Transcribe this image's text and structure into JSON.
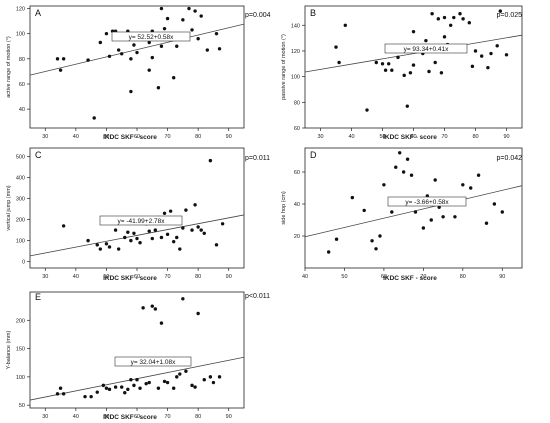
{
  "chart_data": [
    {
      "panel": "A",
      "type": "scatter",
      "xlabel": "IKDC SKF - score",
      "ylabel": "active range of motion (°)",
      "xlim": [
        25,
        95
      ],
      "ylim": [
        25,
        122
      ],
      "xticks": [
        "30",
        "40",
        "50",
        "60",
        "70",
        "80",
        "90"
      ],
      "yticks": [
        "40",
        "60",
        "80",
        "100",
        "120"
      ],
      "pvalue": "p=0.004",
      "equation": "y= 52.52+0.58x",
      "fit": {
        "intercept": 52.52,
        "slope": 0.58
      },
      "points": [
        [
          34,
          80
        ],
        [
          35,
          71
        ],
        [
          36,
          80
        ],
        [
          44,
          79
        ],
        [
          46,
          33
        ],
        [
          48,
          93
        ],
        [
          50,
          100
        ],
        [
          51,
          82
        ],
        [
          52,
          102
        ],
        [
          53,
          102
        ],
        [
          54,
          87
        ],
        [
          55,
          84
        ],
        [
          57,
          102
        ],
        [
          58,
          54
        ],
        [
          58,
          80
        ],
        [
          59,
          91
        ],
        [
          60,
          85
        ],
        [
          62,
          100
        ],
        [
          64,
          93
        ],
        [
          64,
          71
        ],
        [
          65,
          81
        ],
        [
          65,
          102
        ],
        [
          66,
          98
        ],
        [
          67,
          57
        ],
        [
          68,
          120
        ],
        [
          68,
          90
        ],
        [
          69,
          104
        ],
        [
          70,
          112
        ],
        [
          71,
          100
        ],
        [
          72,
          65
        ],
        [
          73,
          90
        ],
        [
          75,
          111
        ],
        [
          76,
          96
        ],
        [
          77,
          120
        ],
        [
          78,
          103
        ],
        [
          79,
          118
        ],
        [
          80,
          96
        ],
        [
          81,
          114
        ],
        [
          83,
          87
        ],
        [
          86,
          100
        ],
        [
          87,
          88
        ]
      ]
    },
    {
      "panel": "B",
      "type": "scatter",
      "xlabel": "IKDC SKF - score",
      "ylabel": "passive range of motion (°)",
      "xlim": [
        25,
        95
      ],
      "ylim": [
        60,
        155
      ],
      "xticks": [
        "30",
        "40",
        "50",
        "60",
        "70",
        "80",
        "90"
      ],
      "yticks": [
        "60",
        "80",
        "100",
        "120",
        "140"
      ],
      "pvalue": "p=0.025",
      "equation": "y= 93.34+0.41x",
      "fit": {
        "intercept": 93.34,
        "slope": 0.41
      },
      "points": [
        [
          35,
          123
        ],
        [
          36,
          111
        ],
        [
          38,
          140
        ],
        [
          45,
          74
        ],
        [
          48,
          111
        ],
        [
          50,
          110
        ],
        [
          51,
          105
        ],
        [
          52,
          110
        ],
        [
          53,
          105
        ],
        [
          55,
          115
        ],
        [
          57,
          101
        ],
        [
          58,
          77
        ],
        [
          59,
          103
        ],
        [
          60,
          135
        ],
        [
          60,
          109
        ],
        [
          62,
          121
        ],
        [
          63,
          118
        ],
        [
          64,
          128
        ],
        [
          65,
          104
        ],
        [
          66,
          149
        ],
        [
          67,
          111
        ],
        [
          68,
          145
        ],
        [
          69,
          103
        ],
        [
          70,
          146
        ],
        [
          70,
          131
        ],
        [
          71,
          125
        ],
        [
          72,
          140
        ],
        [
          73,
          146
        ],
        [
          74,
          124
        ],
        [
          75,
          149
        ],
        [
          76,
          145
        ],
        [
          78,
          142
        ],
        [
          79,
          108
        ],
        [
          80,
          120
        ],
        [
          82,
          116
        ],
        [
          84,
          107
        ],
        [
          85,
          118
        ],
        [
          87,
          124
        ],
        [
          88,
          151
        ],
        [
          90,
          117
        ]
      ]
    },
    {
      "panel": "C",
      "type": "scatter",
      "xlabel": "IKDC SKF - score",
      "ylabel": "vertical jump (mm)",
      "xlim": [
        25,
        95
      ],
      "ylim": [
        -30,
        540
      ],
      "xticks": [
        "30",
        "40",
        "50",
        "60",
        "70",
        "80",
        "90"
      ],
      "yticks": [
        "0",
        "100",
        "200",
        "300",
        "400",
        "500"
      ],
      "pvalue": "p=0.011",
      "equation": "y= -41.99+2.78x",
      "fit": {
        "intercept": -41.99,
        "slope": 2.78
      },
      "points": [
        [
          36,
          170
        ],
        [
          44,
          100
        ],
        [
          47,
          80
        ],
        [
          48,
          60
        ],
        [
          50,
          85
        ],
        [
          51,
          70
        ],
        [
          53,
          150
        ],
        [
          54,
          60
        ],
        [
          56,
          115
        ],
        [
          57,
          140
        ],
        [
          58,
          100
        ],
        [
          59,
          135
        ],
        [
          60,
          110
        ],
        [
          61,
          90
        ],
        [
          63,
          180
        ],
        [
          64,
          145
        ],
        [
          65,
          110
        ],
        [
          66,
          150
        ],
        [
          67,
          210
        ],
        [
          68,
          115
        ],
        [
          69,
          230
        ],
        [
          70,
          130
        ],
        [
          71,
          240
        ],
        [
          72,
          95
        ],
        [
          73,
          115
        ],
        [
          74,
          60
        ],
        [
          75,
          160
        ],
        [
          76,
          245
        ],
        [
          78,
          150
        ],
        [
          79,
          270
        ],
        [
          80,
          165
        ],
        [
          81,
          150
        ],
        [
          82,
          135
        ],
        [
          84,
          480
        ],
        [
          86,
          80
        ],
        [
          88,
          180
        ]
      ]
    },
    {
      "panel": "D",
      "type": "scatter",
      "xlabel": "IKDC SKF - score",
      "ylabel": "side hop (cm)",
      "xlim": [
        40,
        95
      ],
      "ylim": [
        0,
        75
      ],
      "xticks": [
        "40",
        "50",
        "60",
        "70",
        "80",
        "90"
      ],
      "yticks": [
        "20",
        "40",
        "60"
      ],
      "pvalue": "p=0.042",
      "equation": "y= -3.66+0.58x",
      "fit": {
        "intercept": -3.66,
        "slope": 0.58
      },
      "points": [
        [
          46,
          10
        ],
        [
          48,
          18
        ],
        [
          52,
          44
        ],
        [
          55,
          36
        ],
        [
          57,
          17
        ],
        [
          58,
          12
        ],
        [
          59,
          20
        ],
        [
          60,
          52
        ],
        [
          62,
          35
        ],
        [
          63,
          63
        ],
        [
          64,
          72
        ],
        [
          65,
          60
        ],
        [
          66,
          68
        ],
        [
          67,
          58
        ],
        [
          68,
          35
        ],
        [
          69,
          42
        ],
        [
          70,
          25
        ],
        [
          71,
          45
        ],
        [
          72,
          30
        ],
        [
          73,
          55
        ],
        [
          74,
          38
        ],
        [
          75,
          32
        ],
        [
          78,
          32
        ],
        [
          80,
          52
        ],
        [
          82,
          50
        ],
        [
          84,
          58
        ],
        [
          86,
          28
        ],
        [
          88,
          40
        ],
        [
          90,
          35
        ]
      ]
    },
    {
      "panel": "E",
      "type": "scatter",
      "xlabel": "IKDC SKF - score",
      "ylabel": "Y-balance (mm)",
      "xlim": [
        25,
        95
      ],
      "ylim": [
        45,
        250
      ],
      "xticks": [
        "30",
        "40",
        "50",
        "60",
        "70",
        "80",
        "90"
      ],
      "yticks": [
        "50",
        "100",
        "150",
        "200"
      ],
      "pvalue": "p<0.011",
      "equation": "y= 32.04+1.08x",
      "fit": {
        "intercept": 32.04,
        "slope": 1.08
      },
      "points": [
        [
          34,
          70
        ],
        [
          35,
          80
        ],
        [
          36,
          70
        ],
        [
          43,
          65
        ],
        [
          45,
          65
        ],
        [
          47,
          73
        ],
        [
          49,
          85
        ],
        [
          50,
          80
        ],
        [
          51,
          78
        ],
        [
          53,
          82
        ],
        [
          55,
          82
        ],
        [
          56,
          72
        ],
        [
          57,
          78
        ],
        [
          58,
          95
        ],
        [
          59,
          85
        ],
        [
          60,
          95
        ],
        [
          61,
          80
        ],
        [
          62,
          222
        ],
        [
          63,
          88
        ],
        [
          64,
          90
        ],
        [
          65,
          225
        ],
        [
          66,
          220
        ],
        [
          67,
          80
        ],
        [
          68,
          195
        ],
        [
          69,
          92
        ],
        [
          70,
          90
        ],
        [
          72,
          80
        ],
        [
          73,
          100
        ],
        [
          74,
          105
        ],
        [
          75,
          238
        ],
        [
          76,
          110
        ],
        [
          78,
          85
        ],
        [
          79,
          82
        ],
        [
          80,
          212
        ],
        [
          82,
          95
        ],
        [
          84,
          100
        ],
        [
          85,
          90
        ],
        [
          87,
          100
        ]
      ]
    }
  ]
}
